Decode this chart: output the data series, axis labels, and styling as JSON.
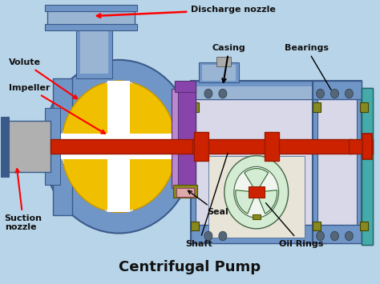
{
  "title": "Centrifugal Pump",
  "bg_color": "#b8d4e8",
  "labels": {
    "discharge_nozzle": "Discharge nozzle",
    "volute": "Volute",
    "impeller": "Impeller",
    "suction_nozzle": "Suction\nnozzle",
    "casing": "Casing",
    "bearings": "Bearings",
    "seal": "Seal",
    "shaft": "Shaft",
    "oil_rings": "Oil Rings"
  },
  "colors": {
    "blue_main": "#7096c8",
    "blue_dark": "#3a5a8a",
    "blue_light": "#9ab4d4",
    "yellow": "#f0c000",
    "yellow_dark": "#c89800",
    "red": "#cc2200",
    "red_dark": "#991800",
    "purple": "#8844aa",
    "purple_light": "#bb88cc",
    "gray_suction": "#b0b0b0",
    "gray_light": "#d8d8e8",
    "olive": "#888820",
    "teal": "#44aaaa",
    "teal_light": "#88cccc",
    "white": "#ffffff",
    "black": "#111111",
    "cream": "#e8e4d8",
    "green_light": "#d4ecd4",
    "green_mid": "#b8d8b8",
    "shaft_collar": "#dd4422",
    "pink": "#ddaaaa"
  }
}
